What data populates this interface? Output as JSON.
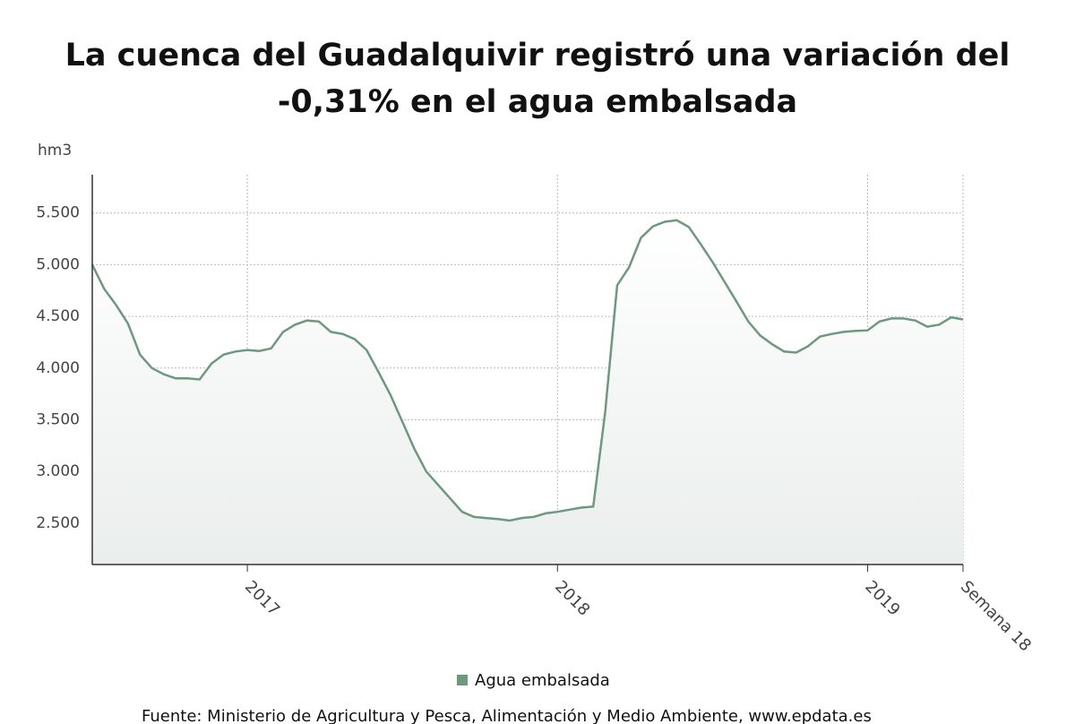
{
  "chart_data": {
    "type": "line",
    "title": "La cuenca del Guadalquivir registró una variación del -0,31% en el agua embalsada",
    "y_label": "hm3",
    "source": "Fuente: Ministerio de Agricultura y Pesca, Alimentación y Medio Ambiente, www.epdata.es",
    "categories": [
      null,
      null,
      null,
      null,
      null,
      null,
      null,
      null,
      null,
      null,
      null,
      null,
      null,
      "2017",
      null,
      null,
      null,
      null,
      null,
      null,
      null,
      null,
      null,
      null,
      null,
      null,
      null,
      null,
      null,
      null,
      null,
      null,
      null,
      null,
      null,
      null,
      null,
      null,
      null,
      "2018",
      null,
      null,
      null,
      null,
      null,
      null,
      null,
      null,
      null,
      null,
      null,
      null,
      null,
      null,
      null,
      null,
      null,
      null,
      null,
      null,
      null,
      null,
      null,
      null,
      null,
      "2019",
      null,
      null,
      null,
      null,
      null,
      null,
      null,
      "Semana 18"
    ],
    "series": [
      {
        "name": "Agua embalsada",
        "color": "#6b9a7f",
        "values": [
          5000,
          4766,
          4610,
          4430,
          4130,
          4000,
          3940,
          3900,
          3900,
          3890,
          4045,
          4130,
          4160,
          4175,
          4165,
          4190,
          4350,
          4420,
          4460,
          4450,
          4350,
          4330,
          4280,
          4175,
          3960,
          3740,
          3480,
          3220,
          3000,
          2870,
          2740,
          2610,
          2560,
          2550,
          2540,
          2525,
          2550,
          2560,
          2595,
          2610,
          2630,
          2650,
          2660,
          3570,
          4800,
          4975,
          5260,
          5370,
          5415,
          5430,
          5365,
          5200,
          5025,
          4835,
          4645,
          4450,
          4315,
          4230,
          4160,
          4150,
          4210,
          4305,
          4330,
          4350,
          4360,
          4365,
          4450,
          4480,
          4480,
          4460,
          4400,
          4420,
          4490,
          4470
        ]
      }
    ],
    "ylim": [
      2100,
      5870
    ],
    "yticks": [
      {
        "value": 2500,
        "label": "2.500"
      },
      {
        "value": 3000,
        "label": "3.000"
      },
      {
        "value": 3500,
        "label": "3.500"
      },
      {
        "value": 4000,
        "label": "4.000"
      },
      {
        "value": 4500,
        "label": "4.500"
      },
      {
        "value": 5000,
        "label": "5.000"
      },
      {
        "value": 5500,
        "label": "5.500"
      }
    ],
    "grid": true,
    "legend": "bottom"
  }
}
